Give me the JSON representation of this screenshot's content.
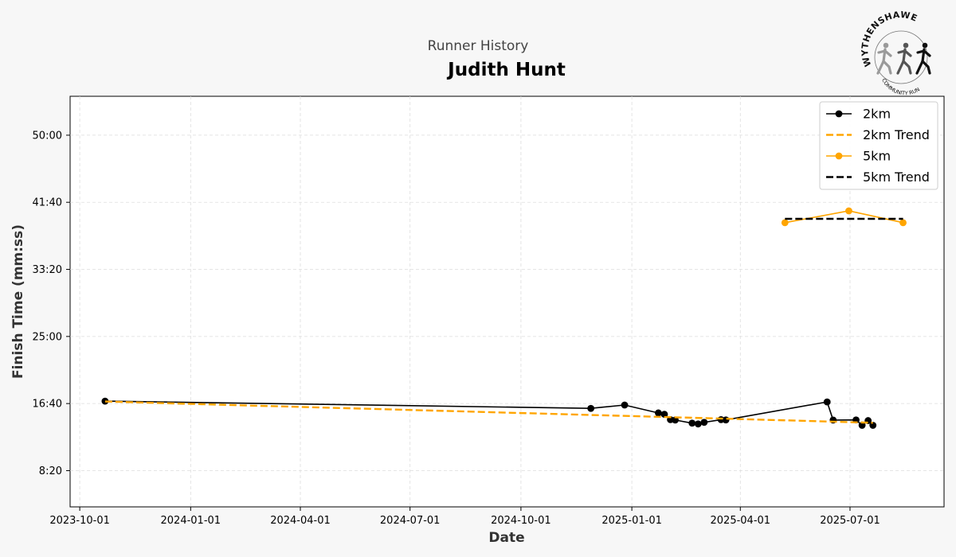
{
  "header": {
    "suptitle": "Runner History",
    "title": "Judith Hunt"
  },
  "logo": {
    "top_text": "WYTHENSHAWE",
    "bottom_text": "COMMUNITY RUN"
  },
  "chart_data": {
    "type": "line",
    "xlabel": "Date",
    "ylabel": "Finish Time (mm:ss)",
    "x_ticks": [
      "2023-10-01",
      "2024-01-01",
      "2024-04-01",
      "2024-07-01",
      "2024-10-01",
      "2025-01-01",
      "2025-04-01",
      "2025-07-01"
    ],
    "y_ticks": [
      "8:20",
      "16:40",
      "25:00",
      "33:20",
      "41:40",
      "50:00"
    ],
    "xlim": [
      "2023-09-23",
      "2025-09-17"
    ],
    "ylim_seconds": [
      230,
      3290
    ],
    "grid": true,
    "legend_position": "top-right",
    "series": [
      {
        "name": "2km",
        "style": "line-marker",
        "color": "#000000",
        "points": [
          {
            "date": "2023-10-22",
            "time": "16:58"
          },
          {
            "date": "2024-11-28",
            "time": "16:04"
          },
          {
            "date": "2024-12-26",
            "time": "16:29"
          },
          {
            "date": "2025-01-23",
            "time": "15:30"
          },
          {
            "date": "2025-01-28",
            "time": "15:20"
          },
          {
            "date": "2025-02-02",
            "time": "14:40"
          },
          {
            "date": "2025-02-06",
            "time": "14:37"
          },
          {
            "date": "2025-02-20",
            "time": "14:14"
          },
          {
            "date": "2025-02-25",
            "time": "14:08"
          },
          {
            "date": "2025-03-02",
            "time": "14:20"
          },
          {
            "date": "2025-03-16",
            "time": "14:40"
          },
          {
            "date": "2025-03-20",
            "time": "14:38"
          },
          {
            "date": "2025-06-12",
            "time": "16:52"
          },
          {
            "date": "2025-06-17",
            "time": "14:37"
          },
          {
            "date": "2025-07-06",
            "time": "14:38"
          },
          {
            "date": "2025-07-11",
            "time": "13:58"
          },
          {
            "date": "2025-07-16",
            "time": "14:33"
          },
          {
            "date": "2025-07-20",
            "time": "13:58"
          }
        ]
      },
      {
        "name": "2km Trend",
        "style": "dashed",
        "color": "#ffa500",
        "points": [
          {
            "date": "2023-10-22",
            "time": "16:55"
          },
          {
            "date": "2025-07-20",
            "time": "14:17"
          }
        ]
      },
      {
        "name": "5km",
        "style": "line-marker",
        "color": "#ffa500",
        "points": [
          {
            "date": "2025-05-08",
            "time": "39:08"
          },
          {
            "date": "2025-06-30",
            "time": "40:36"
          },
          {
            "date": "2025-08-14",
            "time": "39:08"
          }
        ]
      },
      {
        "name": "5km Trend",
        "style": "dashed",
        "color": "#000000",
        "points": [
          {
            "date": "2025-05-08",
            "time": "39:37"
          },
          {
            "date": "2025-08-14",
            "time": "39:37"
          }
        ]
      }
    ]
  }
}
